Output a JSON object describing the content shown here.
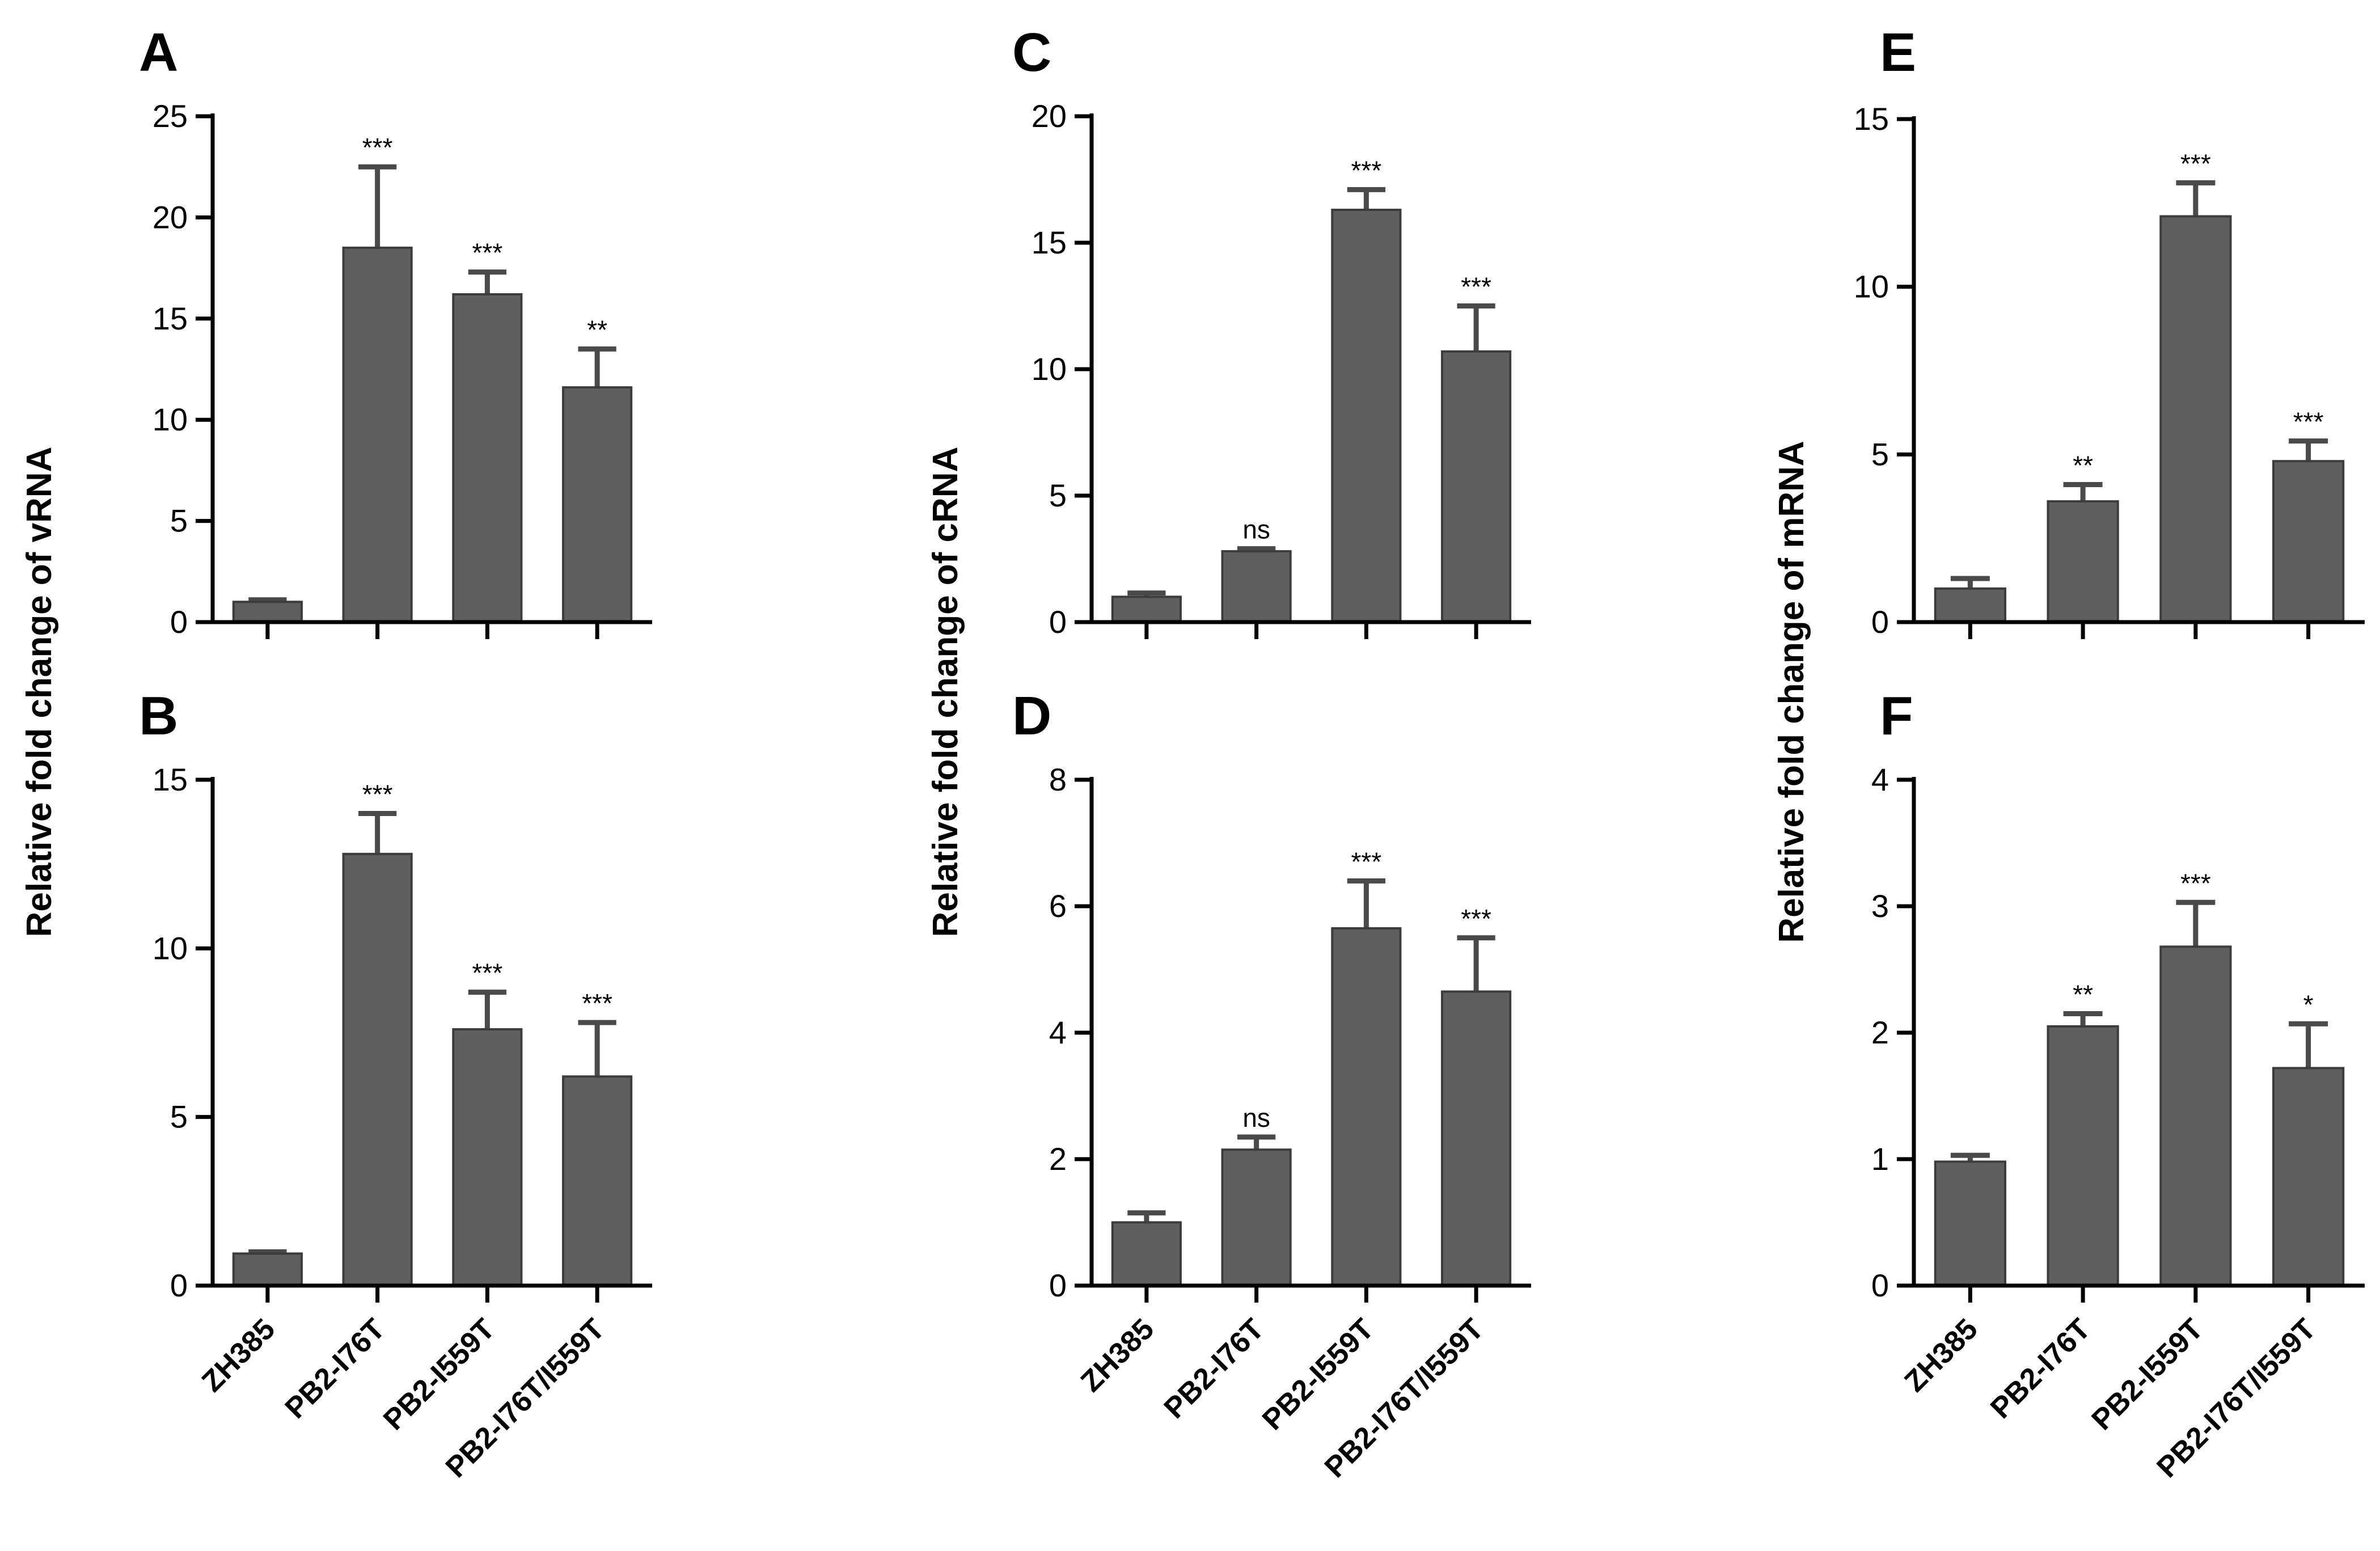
{
  "colors": {
    "bar": "#5f5f5f",
    "bar_edge": "#3c3c3c",
    "axis": "#000000",
    "text": "#000000"
  },
  "ylabels": {
    "vrna": "Relative fold change of vRNA",
    "crna": "Relative fold change of cRNA",
    "mrna": "Relative fold change of mRNA"
  },
  "chart_data": [
    {
      "panel": "A",
      "type": "bar",
      "categories": [
        "ZH385",
        "PB2-I76T",
        "PB2-I559T",
        "PB2-I76T/I559T"
      ],
      "values": [
        1.0,
        18.5,
        16.2,
        11.6
      ],
      "errors": [
        0.1,
        4.0,
        1.1,
        1.9
      ],
      "significance": [
        "",
        "***",
        "***",
        "**"
      ],
      "ylim": [
        0,
        25
      ],
      "yticks": [
        0,
        5,
        10,
        15,
        20,
        25
      ],
      "tick_labels": [
        "0",
        "5",
        "10",
        "15",
        "20",
        "25"
      ],
      "ylabel": "Relative fold change of vRNA",
      "show_categories": false
    },
    {
      "panel": "B",
      "type": "bar",
      "categories": [
        "ZH385",
        "PB2-I76T",
        "PB2-I559T",
        "PB2-I76T/I559T"
      ],
      "values": [
        0.95,
        12.8,
        7.6,
        6.2
      ],
      "errors": [
        0.05,
        1.2,
        1.1,
        1.6
      ],
      "significance": [
        "",
        "***",
        "***",
        "***"
      ],
      "ylim": [
        0,
        15
      ],
      "yticks": [
        0,
        5,
        10,
        15
      ],
      "tick_labels": [
        "0",
        "5",
        "10",
        "15"
      ],
      "ylabel": "Relative fold change of vRNA",
      "show_categories": true
    },
    {
      "panel": "C",
      "type": "bar",
      "categories": [
        "ZH385",
        "PB2-I76T",
        "PB2-I559T",
        "PB2-I76T/I559T"
      ],
      "values": [
        1.0,
        2.8,
        16.3,
        10.7
      ],
      "errors": [
        0.15,
        0.1,
        0.8,
        1.8
      ],
      "significance": [
        "",
        "ns",
        "***",
        "***"
      ],
      "ylim": [
        0,
        20
      ],
      "yticks": [
        0,
        5,
        10,
        15,
        20
      ],
      "tick_labels": [
        "0",
        "5",
        "10",
        "15",
        "20"
      ],
      "ylabel": "Relative fold change of cRNA",
      "show_categories": false
    },
    {
      "panel": "D",
      "type": "bar",
      "categories": [
        "ZH385",
        "PB2-I76T",
        "PB2-I559T",
        "PB2-I76T/I559T"
      ],
      "values": [
        1.0,
        2.15,
        5.65,
        4.65
      ],
      "errors": [
        0.15,
        0.2,
        0.75,
        0.85
      ],
      "significance": [
        "",
        "ns",
        "***",
        "***"
      ],
      "ylim": [
        0,
        8
      ],
      "yticks": [
        0,
        2,
        4,
        6,
        8
      ],
      "tick_labels": [
        "0",
        "2",
        "4",
        "6",
        "8"
      ],
      "ylabel": "Relative fold change of cRNA",
      "show_categories": true
    },
    {
      "panel": "E",
      "type": "bar",
      "categories": [
        "ZH385",
        "PB2-I76T",
        "PB2-I559T",
        "PB2-I76T/I559T"
      ],
      "values": [
        1.0,
        3.6,
        12.1,
        4.8
      ],
      "errors": [
        0.3,
        0.5,
        1.0,
        0.6
      ],
      "significance": [
        "",
        "**",
        "***",
        "***"
      ],
      "ylim": [
        0,
        15
      ],
      "yticks": [
        0,
        5,
        10,
        15
      ],
      "tick_labels": [
        "0",
        "5",
        "10",
        "15"
      ],
      "ylabel": "Relative fold change of mRNA",
      "show_categories": false
    },
    {
      "panel": "F",
      "type": "bar",
      "categories": [
        "ZH385",
        "PB2-I76T",
        "PB2-I559T",
        "PB2-I76T/I559T"
      ],
      "values": [
        0.98,
        2.05,
        2.68,
        1.72
      ],
      "errors": [
        0.05,
        0.1,
        0.35,
        0.35
      ],
      "significance": [
        "",
        "**",
        "***",
        "*"
      ],
      "ylim": [
        0,
        4
      ],
      "yticks": [
        0,
        1,
        2,
        3,
        4
      ],
      "tick_labels": [
        "0",
        "1",
        "2",
        "3",
        "4"
      ],
      "ylabel": "Relative fold change of mRNA",
      "show_categories": true
    }
  ]
}
